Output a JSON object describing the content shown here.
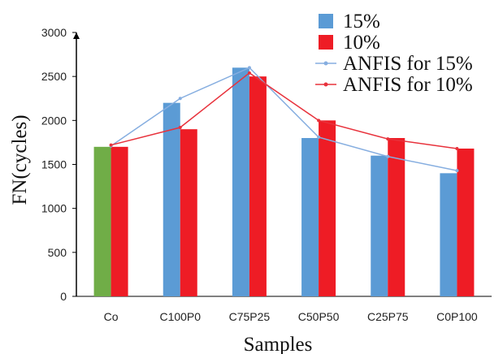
{
  "chart_data": {
    "type": "bar",
    "xlabel": "Samples",
    "ylabel": "FN(cycles)",
    "ylim": [
      0,
      3000
    ],
    "yticks": [
      0,
      500,
      1000,
      1500,
      2000,
      2500,
      3000
    ],
    "grid": false,
    "legend_position": "top-right",
    "categories": [
      "Co",
      "C100P0",
      "C75P25",
      "C50P50",
      "C25P75",
      "C0P100"
    ],
    "series": [
      {
        "name": "15%",
        "kind": "bar",
        "color": "#5b9bd5",
        "values": [
          1700,
          2200,
          2600,
          1800,
          1600,
          1400
        ]
      },
      {
        "name": "10%",
        "kind": "bar",
        "color": "#ee1c25",
        "values": [
          1700,
          1900,
          2500,
          2000,
          1800,
          1680
        ]
      },
      {
        "name": "ANFIS for 15%",
        "kind": "line",
        "color": "#86aee0",
        "values": [
          1710,
          2250,
          2600,
          1810,
          1590,
          1430
        ]
      },
      {
        "name": "ANFIS for 10%",
        "kind": "line",
        "color": "#e8323c",
        "values": [
          1720,
          1920,
          2540,
          2000,
          1790,
          1680
        ]
      }
    ],
    "control_bar_color": "#70ad47"
  }
}
